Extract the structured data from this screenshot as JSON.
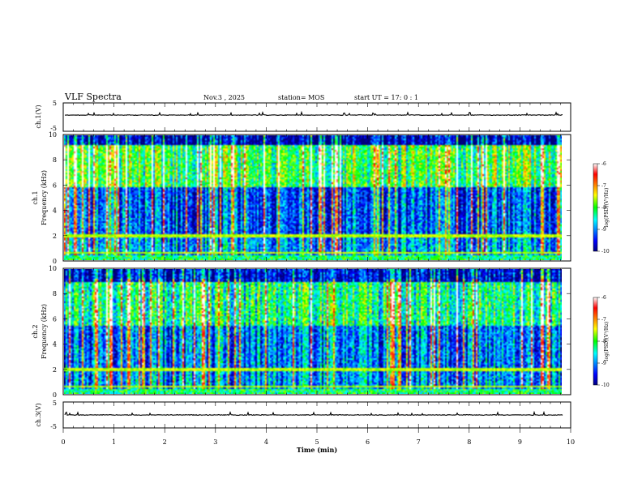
{
  "chart_data": {
    "type": "heatmap",
    "title": "VLF Spectra",
    "header": {
      "date": "Nov.3 , 2025",
      "station": "station= MOS",
      "start": "start UT = 17: 0 : 1"
    },
    "xlabel": "Time (min)",
    "xlim": [
      0,
      10
    ],
    "x_ticks": [
      "0",
      "1",
      "2",
      "3",
      "4",
      "5",
      "6",
      "7",
      "8",
      "9",
      "10"
    ],
    "panels": [
      {
        "name": "ch1-waveform",
        "ylabel": "ch.1(V)",
        "ylim": [
          -5,
          5
        ],
        "y_ticks": [
          "5",
          "-5"
        ]
      },
      {
        "name": "ch1-spectrogram",
        "ylabel_line1": "ch.1",
        "ylabel_line2": "Frequency (kHz)",
        "ylim": [
          0,
          10
        ],
        "y_ticks": [
          "10",
          "8",
          "6",
          "4",
          "2",
          "0"
        ],
        "colorbar_label": "log(PSD)(V²/Hz)",
        "colorbar_ticks": [
          "-6",
          "-7",
          "-8",
          "-9",
          "-10"
        ],
        "clim": [
          -10,
          -6
        ]
      },
      {
        "name": "ch2-spectrogram",
        "ylabel_line1": "ch.2",
        "ylabel_line2": "Frequency (kHz)",
        "ylim": [
          0,
          10
        ],
        "y_ticks": [
          "10",
          "8",
          "6",
          "4",
          "2",
          "0"
        ],
        "colorbar_label": "log(PSD)(V²/Hz)",
        "colorbar_ticks": [
          "-6",
          "-7",
          "-8",
          "-9",
          "-10"
        ],
        "clim": [
          -10,
          -6
        ]
      },
      {
        "name": "ch3-waveform",
        "ylabel": "ch.3(V)",
        "ylim": [
          -5,
          5
        ],
        "y_ticks": [
          "5",
          "-5"
        ]
      }
    ],
    "data_end_min": 9.85
  }
}
